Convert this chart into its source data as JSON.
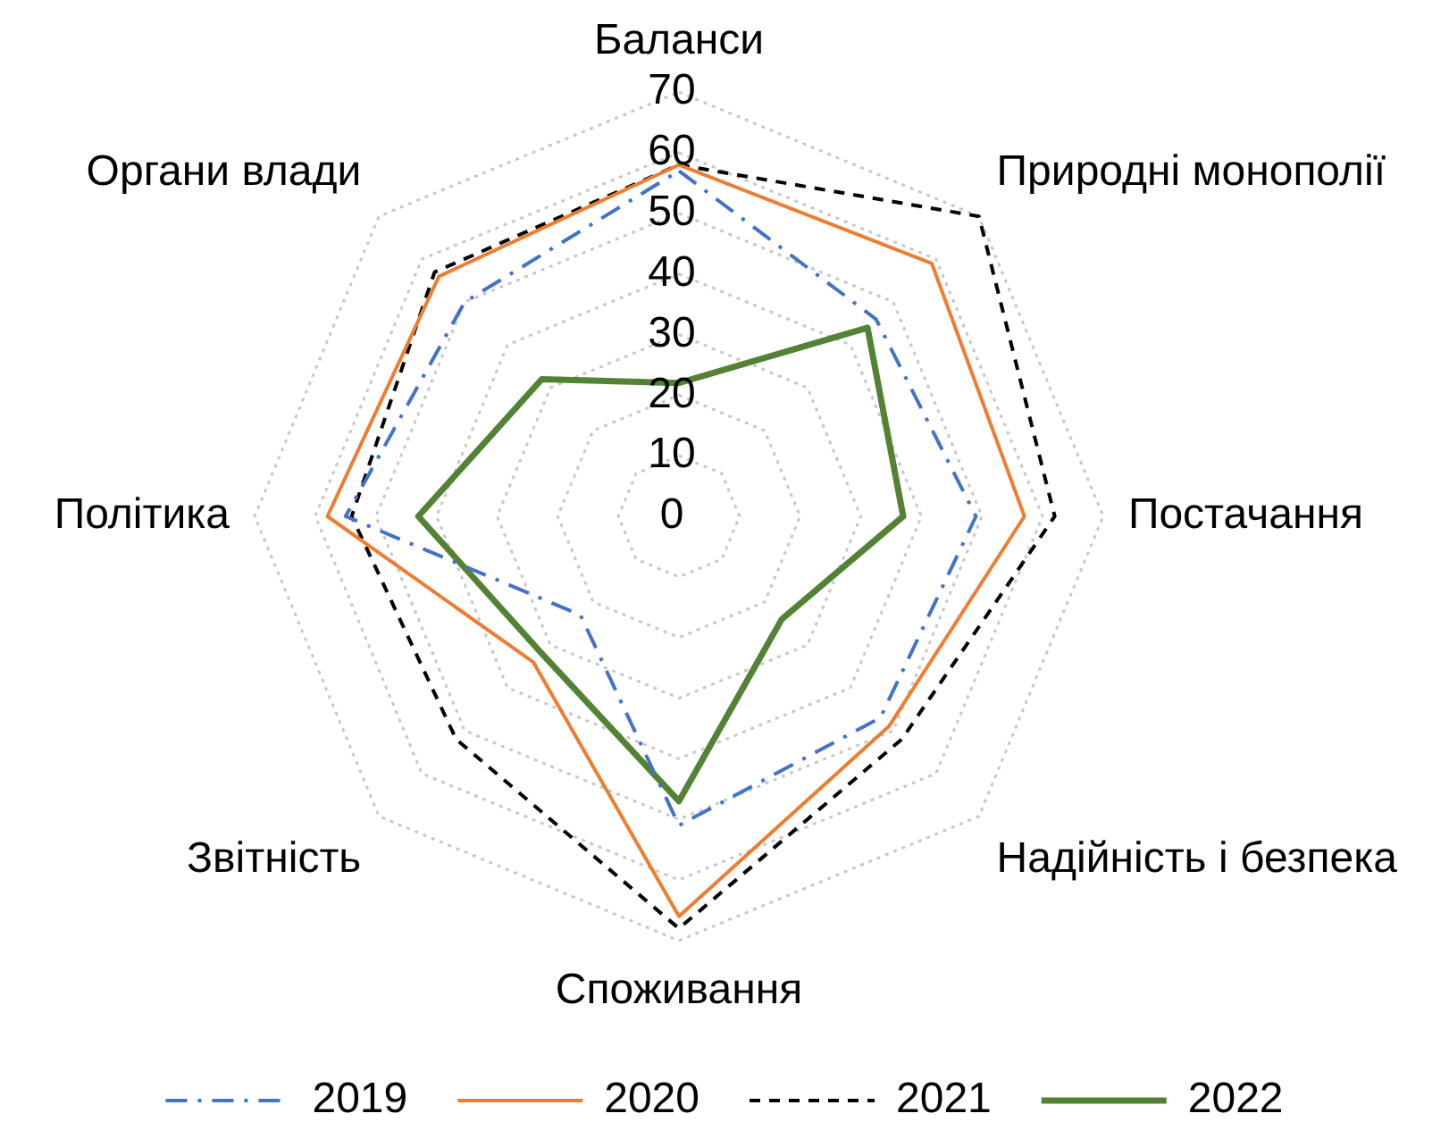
{
  "chart_data": {
    "type": "radar",
    "categories": [
      "Баланси",
      "Природні монополії",
      "Постачання",
      "Надійність і безпека",
      "Споживання",
      "Звітність",
      "Політика",
      "Органи влади"
    ],
    "ylim": [
      0,
      70
    ],
    "yticks": [
      0,
      10,
      20,
      30,
      40,
      50,
      60,
      70
    ],
    "grid": true,
    "legend": "bottom",
    "marker": "none",
    "series": [
      {
        "name": "2019",
        "color": "#4472c4",
        "line_style": "dashdot",
        "values": [
          57,
          46,
          49,
          47,
          51,
          23,
          55,
          50
        ]
      },
      {
        "name": "2020",
        "color": "#ed7d31",
        "line_style": "solid",
        "values": [
          58,
          59,
          57,
          49,
          66,
          34,
          58,
          56
        ]
      },
      {
        "name": "2021",
        "color": "#000000",
        "line_style": "dashed",
        "values": [
          58,
          70,
          62,
          52,
          68,
          52,
          54,
          57
        ]
      },
      {
        "name": "2022",
        "color": "#548235",
        "line_style": "solid",
        "values": [
          22,
          44,
          37,
          24,
          47,
          32,
          43,
          32
        ]
      }
    ]
  }
}
